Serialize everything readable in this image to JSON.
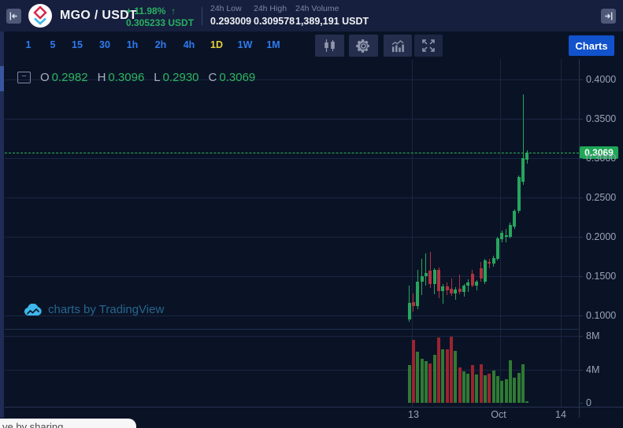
{
  "topbar": {
    "pair": "MGO / USDT",
    "change_pct": "+ 11.98%",
    "change_arrow": "↑",
    "last_price": "0.305233 USDT",
    "stats": [
      {
        "label": "24h Low",
        "value": "0.293009"
      },
      {
        "label": "24h High",
        "value": "0.309578"
      },
      {
        "label": "24h Volume",
        "value": "1,389,191 USDT"
      }
    ]
  },
  "toolbar": {
    "timeframes": [
      {
        "label": "1",
        "active": false
      },
      {
        "label": "5",
        "active": false
      },
      {
        "label": "15",
        "active": false
      },
      {
        "label": "30",
        "active": false
      },
      {
        "label": "1h",
        "active": false
      },
      {
        "label": "2h",
        "active": false
      },
      {
        "label": "4h",
        "active": false
      },
      {
        "label": "1D",
        "active": true
      },
      {
        "label": "1W",
        "active": false
      },
      {
        "label": "1M",
        "active": false
      }
    ],
    "icons": [
      "candlestick-style",
      "settings",
      "indicators",
      "fullscreen"
    ],
    "charts_button": "Charts"
  },
  "legend": {
    "collapse_glyph": "−",
    "items": [
      {
        "k": "O",
        "v": "0.2982"
      },
      {
        "k": "H",
        "v": "0.3096"
      },
      {
        "k": "L",
        "v": "0.2930"
      },
      {
        "k": "C",
        "v": "0.3069"
      }
    ]
  },
  "watermark": {
    "text": "charts by TradingView"
  },
  "footer": {
    "tooltip_text": "ve by sharing"
  },
  "chart_data": {
    "type": "candlestick_with_volume",
    "pair": "MGO/USDT",
    "selected_interval": "1D",
    "price_axis": {
      "ticks": [
        {
          "label": "0.4000",
          "value": 0.4
        },
        {
          "label": "0.3500",
          "value": 0.35
        },
        {
          "label": "0.3000",
          "value": 0.3
        },
        {
          "label": "0.2500",
          "value": 0.25
        },
        {
          "label": "0.2000",
          "value": 0.2
        },
        {
          "label": "0.1500",
          "value": 0.15
        },
        {
          "label": "0.1000",
          "value": 0.1
        }
      ]
    },
    "volume_axis": {
      "ticks": [
        {
          "label": "8M",
          "value": 8
        },
        {
          "label": "4M",
          "value": 4
        },
        {
          "label": "0",
          "value": 0
        }
      ]
    },
    "time_axis": {
      "ticks": [
        "13",
        "Oct",
        "14"
      ]
    },
    "last_price": {
      "label": "0.3069",
      "value": 0.3069
    },
    "ohlc_current": {
      "open": 0.2982,
      "high": 0.3096,
      "low": 0.293,
      "close": 0.3069
    },
    "colors": {
      "up": "#26a65d",
      "down": "#b23240",
      "vol_up": "#2f7a33",
      "vol_down": "#9c2430",
      "last_price_line": "#2bb35a",
      "last_price_tag": "#1fa656"
    },
    "candles_ohlcv": [
      [
        0.095,
        0.138,
        0.092,
        0.116,
        4.5
      ],
      [
        0.117,
        0.128,
        0.105,
        0.112,
        7.5
      ],
      [
        0.112,
        0.158,
        0.108,
        0.143,
        6.1
      ],
      [
        0.143,
        0.172,
        0.126,
        0.15,
        5.3
      ],
      [
        0.15,
        0.179,
        0.138,
        0.154,
        5.0
      ],
      [
        0.157,
        0.181,
        0.135,
        0.14,
        4.7
      ],
      [
        0.14,
        0.16,
        0.127,
        0.158,
        5.7
      ],
      [
        0.158,
        0.161,
        0.122,
        0.131,
        7.8
      ],
      [
        0.131,
        0.14,
        0.115,
        0.137,
        6.4
      ],
      [
        0.137,
        0.142,
        0.126,
        0.132,
        6.4
      ],
      [
        0.134,
        0.147,
        0.125,
        0.128,
        7.9
      ],
      [
        0.128,
        0.136,
        0.12,
        0.133,
        6.2
      ],
      [
        0.134,
        0.152,
        0.127,
        0.13,
        4.2
      ],
      [
        0.13,
        0.14,
        0.124,
        0.138,
        3.8
      ],
      [
        0.138,
        0.146,
        0.13,
        0.142,
        3.5
      ],
      [
        0.153,
        0.158,
        0.136,
        0.138,
        4.5
      ],
      [
        0.138,
        0.145,
        0.132,
        0.143,
        3.4
      ],
      [
        0.16,
        0.168,
        0.143,
        0.147,
        4.6
      ],
      [
        0.143,
        0.172,
        0.14,
        0.17,
        3.3
      ],
      [
        0.168,
        0.172,
        0.16,
        0.166,
        3.5
      ],
      [
        0.166,
        0.176,
        0.162,
        0.173,
        3.9
      ],
      [
        0.172,
        0.2,
        0.17,
        0.198,
        3.2
      ],
      [
        0.197,
        0.208,
        0.193,
        0.205,
        2.6
      ],
      [
        0.2,
        0.21,
        0.193,
        0.202,
        2.8
      ],
      [
        0.2,
        0.218,
        0.198,
        0.215,
        5.1
      ],
      [
        0.213,
        0.235,
        0.21,
        0.233,
        3.0
      ],
      [
        0.233,
        0.278,
        0.23,
        0.276,
        3.6
      ],
      [
        0.27,
        0.381,
        0.266,
        0.3,
        4.6
      ],
      [
        0.2982,
        0.3096,
        0.293,
        0.3069,
        0.2
      ]
    ]
  }
}
